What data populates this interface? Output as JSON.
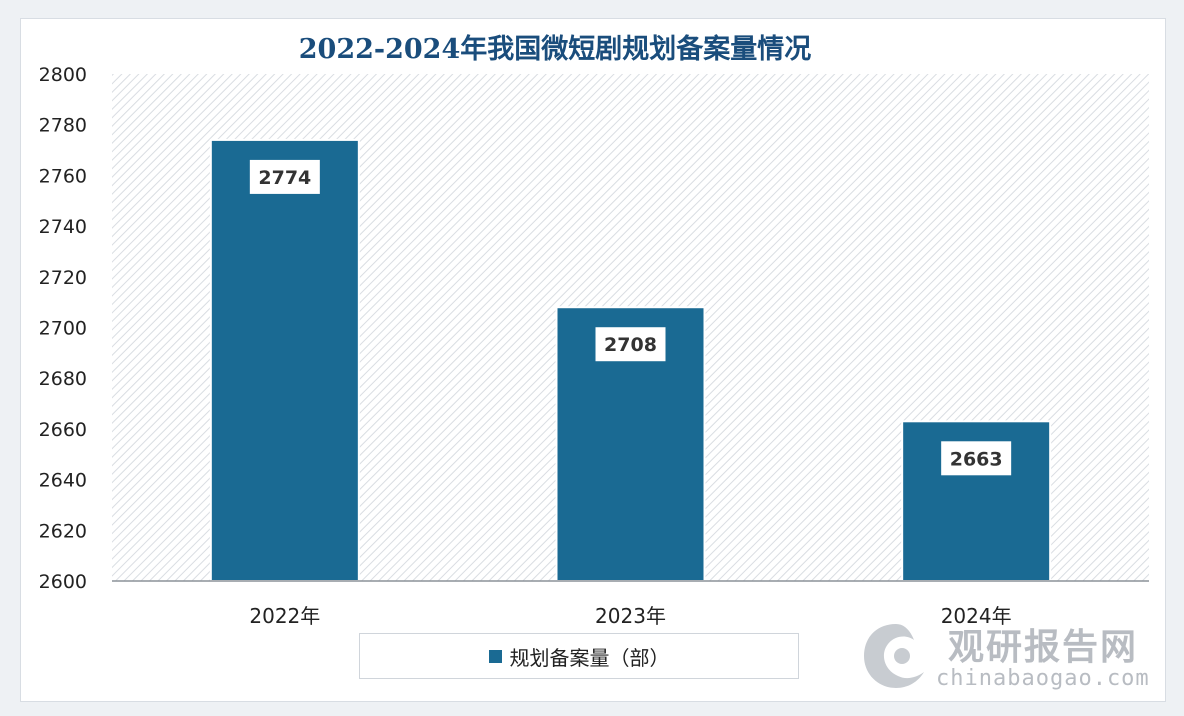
{
  "chart_data": {
    "type": "bar",
    "title": "2022-2024年我国微短剧规划备案量情况",
    "categories": [
      "2022年",
      "2023年",
      "2024年"
    ],
    "series": [
      {
        "name": "规划备案量（部）",
        "values": [
          2774,
          2708,
          2663
        ]
      }
    ],
    "data_labels": [
      "2774",
      "2708",
      "2663"
    ],
    "ylim": [
      2600,
      2800
    ],
    "ytick_step": 20,
    "yticks": [
      "2600",
      "2620",
      "2640",
      "2660",
      "2680",
      "2700",
      "2720",
      "2740",
      "2760",
      "2780",
      "2800"
    ],
    "xlabel": "",
    "ylabel": "",
    "legend_position": "bottom",
    "grid": false,
    "bar_color": "#1a6a93",
    "plot_background": "hatched-light-gray"
  },
  "legend": {
    "label": "规划备案量（部）"
  },
  "watermark": {
    "cn": "观研报告网",
    "en": "chinabaogao.com"
  }
}
